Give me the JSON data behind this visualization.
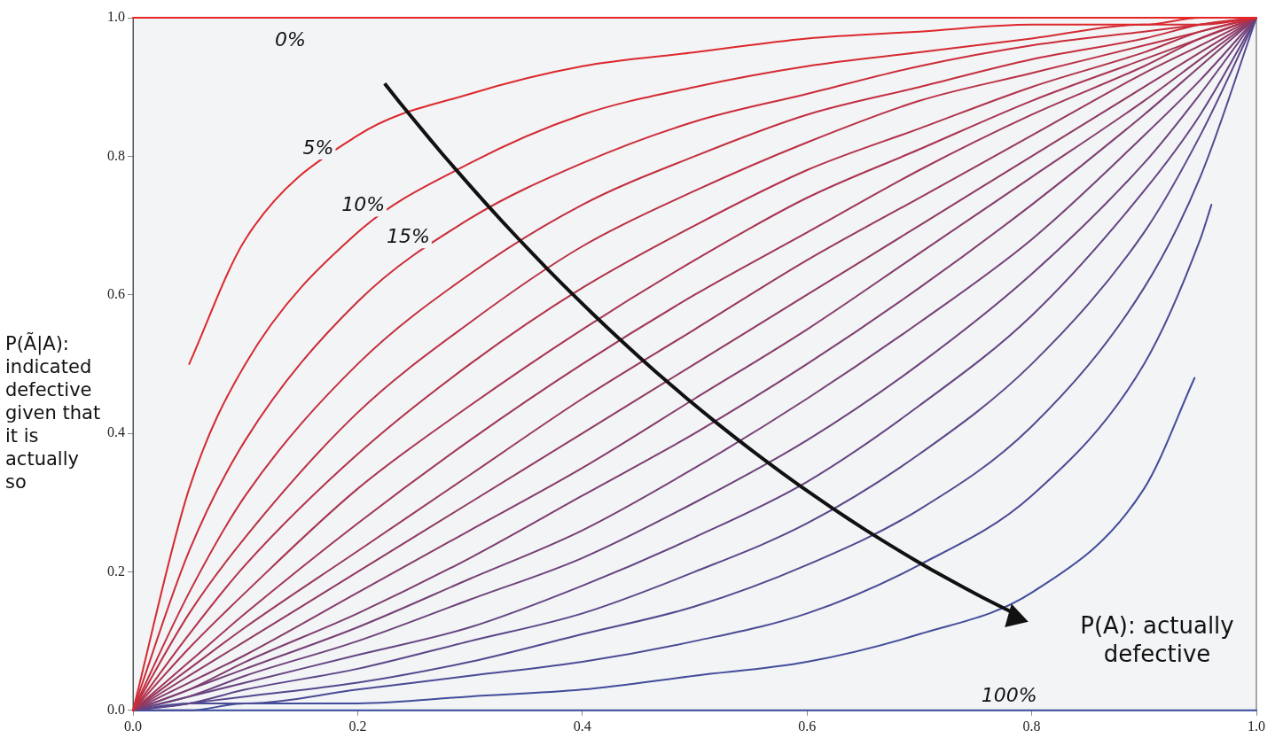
{
  "chart_data": {
    "type": "line",
    "xlabel": "P(A): actually defective",
    "ylabel": "P(Ã|A): indicated defective given that it is actually so",
    "xlim": [
      0,
      1
    ],
    "ylim": [
      0,
      1
    ],
    "xticks": [
      {
        "value": 0,
        "label": "0.0"
      },
      {
        "value": 0.2,
        "label": "0.2"
      },
      {
        "value": 0.4,
        "label": "0.4"
      },
      {
        "value": 0.6,
        "label": "0.6"
      },
      {
        "value": 0.8,
        "label": "0.8"
      },
      {
        "value": 1,
        "label": "1.0"
      }
    ],
    "yticks": [
      {
        "value": 0,
        "label": "0.0"
      },
      {
        "value": 0.2,
        "label": "0.2"
      },
      {
        "value": 0.4,
        "label": "0.4"
      },
      {
        "value": 0.6,
        "label": "0.6"
      },
      {
        "value": 0.8,
        "label": "0.8"
      },
      {
        "value": 1,
        "label": "1.0"
      }
    ],
    "grid": false,
    "marker": "none",
    "line_style": "solid",
    "x": [
      0,
      0.05,
      0.1,
      0.2,
      0.3,
      0.4,
      0.5,
      0.6,
      0.7,
      0.8,
      0.9,
      0.95,
      1
    ],
    "series": [
      {
        "name": "0%",
        "color": "#e62626",
        "x": [
          0,
          1
        ],
        "values": [
          1,
          1
        ]
      },
      {
        "name": "5%",
        "color": "#dd282c",
        "x": [
          0.05,
          0.1,
          0.2,
          0.3,
          0.4,
          0.5,
          0.6,
          0.7,
          0.8,
          0.9,
          0.95,
          1
        ],
        "values": [
          0.5,
          0.68,
          0.83,
          0.89,
          0.93,
          0.95,
          0.97,
          0.98,
          0.99,
          0.99,
          1,
          1
        ]
      },
      {
        "name": "10%",
        "color": "#d52a32",
        "values": [
          0,
          0.32,
          0.5,
          0.69,
          0.79,
          0.86,
          0.9,
          0.93,
          0.95,
          0.97,
          0.99,
          0.99,
          1
        ]
      },
      {
        "name": "15%",
        "color": "#cc2c38",
        "values": [
          0,
          0.23,
          0.39,
          0.59,
          0.71,
          0.79,
          0.85,
          0.89,
          0.93,
          0.96,
          0.98,
          0.99,
          1
        ]
      },
      {
        "color": "#c42e3e",
        "values": [
          0,
          0.17,
          0.31,
          0.5,
          0.63,
          0.73,
          0.8,
          0.86,
          0.9,
          0.94,
          0.97,
          0.99,
          1
        ]
      },
      {
        "color": "#bb3044",
        "values": [
          0,
          0.14,
          0.25,
          0.43,
          0.56,
          0.67,
          0.75,
          0.82,
          0.88,
          0.92,
          0.96,
          0.98,
          1
        ]
      },
      {
        "color": "#b2324b",
        "values": [
          0,
          0.11,
          0.21,
          0.37,
          0.5,
          0.61,
          0.7,
          0.78,
          0.84,
          0.9,
          0.95,
          0.98,
          1
        ]
      },
      {
        "color": "#aa3451",
        "values": [
          0,
          0.09,
          0.17,
          0.32,
          0.44,
          0.55,
          0.65,
          0.74,
          0.81,
          0.88,
          0.94,
          0.97,
          1
        ]
      },
      {
        "color": "#a13657",
        "values": [
          0,
          0.07,
          0.14,
          0.27,
          0.39,
          0.5,
          0.6,
          0.69,
          0.78,
          0.86,
          0.93,
          0.97,
          1
        ]
      },
      {
        "color": "#99385d",
        "values": [
          0,
          0.06,
          0.12,
          0.23,
          0.34,
          0.45,
          0.55,
          0.65,
          0.74,
          0.83,
          0.92,
          0.96,
          1
        ]
      },
      {
        "color": "#903a63",
        "values": [
          0,
          0.05,
          0.1,
          0.2,
          0.3,
          0.4,
          0.5,
          0.6,
          0.7,
          0.8,
          0.9,
          0.95,
          1
        ]
      },
      {
        "color": "#873c69",
        "values": [
          0,
          0.04,
          0.08,
          0.17,
          0.26,
          0.35,
          0.45,
          0.55,
          0.66,
          0.77,
          0.88,
          0.94,
          1
        ]
      },
      {
        "color": "#7f3e6f",
        "values": [
          0,
          0.03,
          0.07,
          0.14,
          0.22,
          0.31,
          0.4,
          0.5,
          0.61,
          0.73,
          0.86,
          0.93,
          1
        ]
      },
      {
        "color": "#764075",
        "values": [
          0,
          0.03,
          0.06,
          0.12,
          0.19,
          0.26,
          0.35,
          0.45,
          0.56,
          0.68,
          0.83,
          0.91,
          1
        ]
      },
      {
        "color": "#6e427b",
        "values": [
          0,
          0.02,
          0.05,
          0.1,
          0.16,
          0.22,
          0.3,
          0.39,
          0.5,
          0.63,
          0.79,
          0.89,
          1
        ]
      },
      {
        "color": "#654482",
        "values": [
          0,
          0.02,
          0.04,
          0.08,
          0.12,
          0.18,
          0.25,
          0.33,
          0.44,
          0.57,
          0.75,
          0.86,
          1
        ]
      },
      {
        "color": "#5c4688",
        "values": [
          0,
          0.01,
          0.03,
          0.06,
          0.1,
          0.14,
          0.2,
          0.27,
          0.37,
          0.5,
          0.69,
          0.83,
          1
        ]
      },
      {
        "color": "#54488e",
        "values": [
          0,
          0.01,
          0.02,
          0.04,
          0.07,
          0.11,
          0.15,
          0.21,
          0.29,
          0.41,
          0.61,
          0.77,
          1
        ]
      },
      {
        "color": "#4b4a94",
        "x": [
          0,
          0.05,
          0.1,
          0.2,
          0.3,
          0.4,
          0.5,
          0.6,
          0.7,
          0.8,
          0.9,
          0.95,
          0.96
        ],
        "values": [
          0,
          0.01,
          0.01,
          0.03,
          0.05,
          0.07,
          0.1,
          0.14,
          0.21,
          0.31,
          0.5,
          0.68,
          0.73
        ]
      },
      {
        "color": "#434c9a",
        "x": [
          0,
          0.05,
          0.1,
          0.2,
          0.3,
          0.4,
          0.5,
          0.6,
          0.7,
          0.8,
          0.9,
          0.945
        ],
        "values": [
          0,
          0,
          0.01,
          0.01,
          0.02,
          0.03,
          0.05,
          0.07,
          0.11,
          0.17,
          0.32,
          0.48
        ]
      },
      {
        "name": "100%",
        "color": "#3a4ea0",
        "x": [
          0,
          1
        ],
        "values": [
          0,
          0
        ]
      }
    ]
  }
}
